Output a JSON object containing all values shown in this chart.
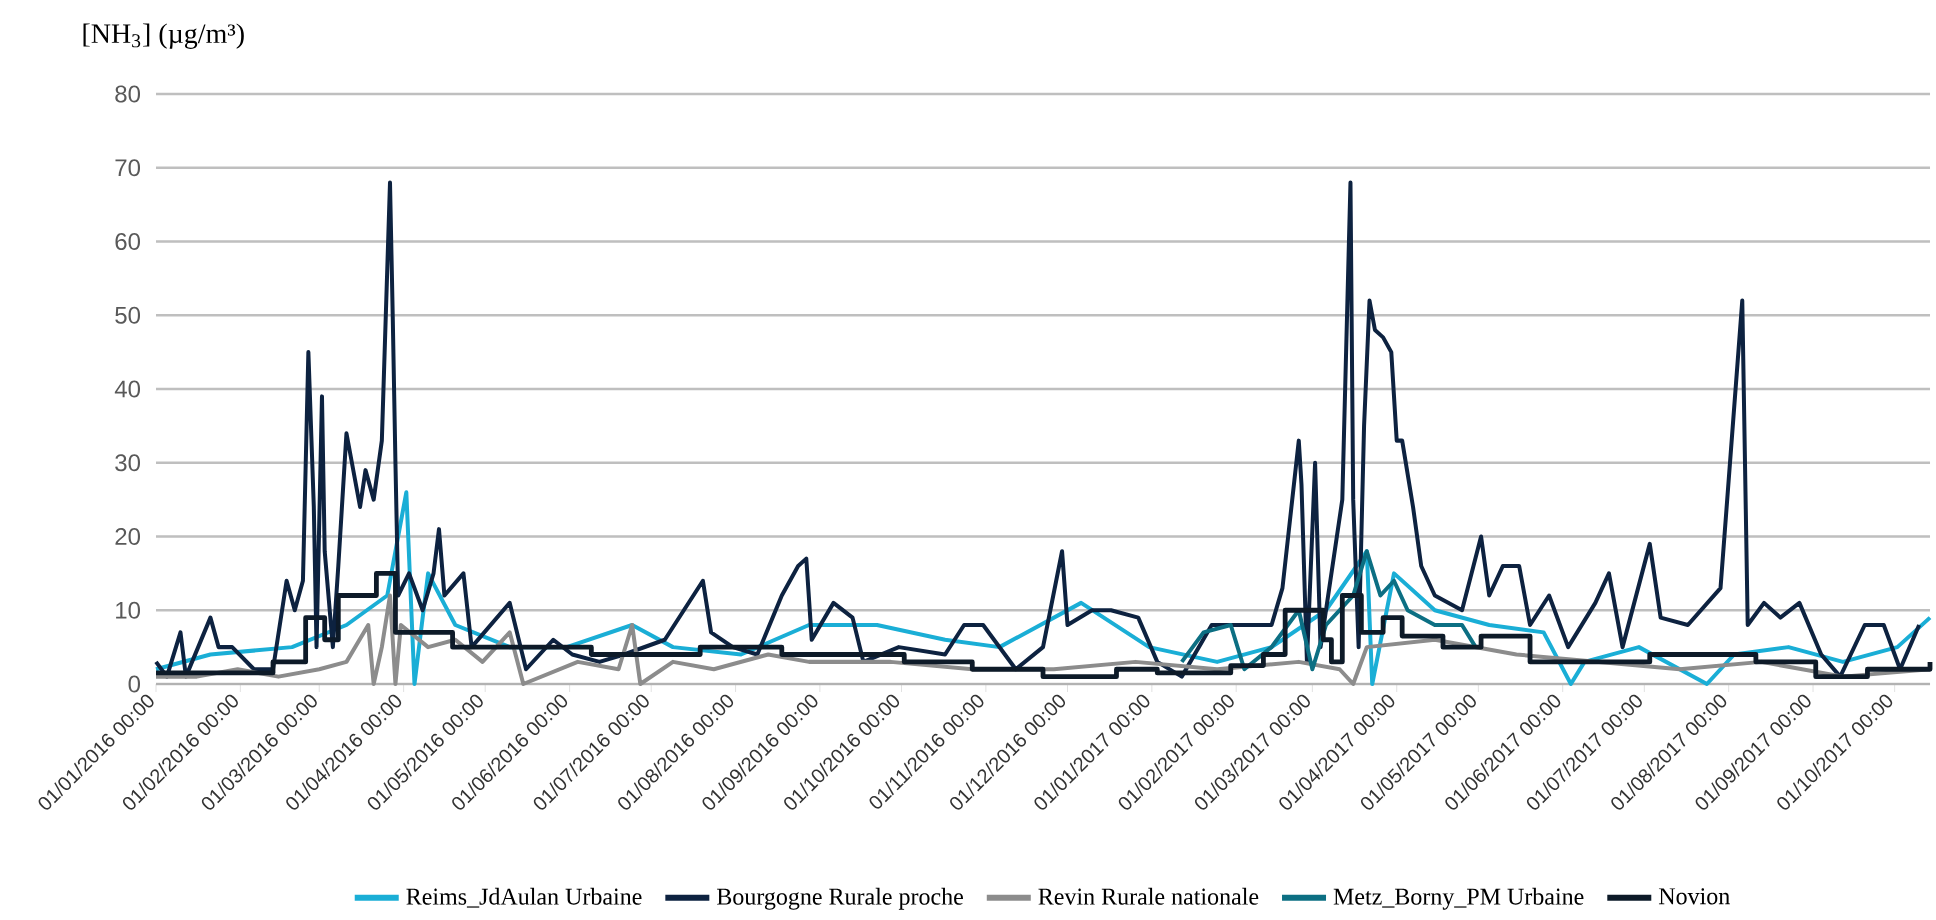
{
  "chart_data": {
    "type": "line",
    "ylabel": "[NH$_{3}$] (µg/m³)",
    "xlim": [
      "2016-01-01",
      "2017-10-14"
    ],
    "ylim": [
      0,
      80
    ],
    "yticks": [
      0,
      10,
      20,
      30,
      40,
      50,
      60,
      70,
      80
    ],
    "xticks": [
      {
        "value": "2016-01-01",
        "label": "01/01/2016 00:00"
      },
      {
        "value": "2016-02-01",
        "label": "01/02/2016 00:00"
      },
      {
        "value": "2016-03-01",
        "label": "01/03/2016 00:00"
      },
      {
        "value": "2016-04-01",
        "label": "01/04/2016 00:00"
      },
      {
        "value": "2016-05-01",
        "label": "01/05/2016 00:00"
      },
      {
        "value": "2016-06-01",
        "label": "01/06/2016 00:00"
      },
      {
        "value": "2016-07-01",
        "label": "01/07/2016 00:00"
      },
      {
        "value": "2016-08-01",
        "label": "01/08/2016 00:00"
      },
      {
        "value": "2016-09-01",
        "label": "01/09/2016 00:00"
      },
      {
        "value": "2016-10-01",
        "label": "01/10/2016 00:00"
      },
      {
        "value": "2016-11-01",
        "label": "01/11/2016 00:00"
      },
      {
        "value": "2016-12-01",
        "label": "01/12/2016 00:00"
      },
      {
        "value": "2017-01-01",
        "label": "01/01/2017 00:00"
      },
      {
        "value": "2017-02-01",
        "label": "01/02/2017 00:00"
      },
      {
        "value": "2017-03-01",
        "label": "01/03/2017 00:00"
      },
      {
        "value": "2017-04-01",
        "label": "01/04/2017 00:00"
      },
      {
        "value": "2017-05-01",
        "label": "01/05/2017 00:00"
      },
      {
        "value": "2017-06-01",
        "label": "01/06/2017 00:00"
      },
      {
        "value": "2017-07-01",
        "label": "01/07/2017 00:00"
      },
      {
        "value": "2017-08-01",
        "label": "01/08/2017 00:00"
      },
      {
        "value": "2017-09-01",
        "label": "01/09/2017 00:00"
      },
      {
        "value": "2017-10-01",
        "label": "01/10/2017 00:00"
      }
    ],
    "grid": "y",
    "legend": "bottom",
    "series": [
      {
        "name": "Reims_JdAulan Urbaine",
        "color": "#1aaed6",
        "x": [
          "2016-01-01",
          "2016-01-21",
          "2016-02-20",
          "2016-03-11",
          "2016-03-26",
          "2016-04-02",
          "2016-04-05",
          "2016-04-10",
          "2016-04-20",
          "2016-05-10",
          "2016-05-31",
          "2016-06-24",
          "2016-07-09",
          "2016-08-03",
          "2016-08-28",
          "2016-09-22",
          "2016-10-17",
          "2016-11-06",
          "2016-12-06",
          "2016-12-31",
          "2017-01-25",
          "2017-02-14",
          "2017-03-06",
          "2017-03-21",
          "2017-03-23",
          "2017-03-31",
          "2017-04-15",
          "2017-05-05",
          "2017-05-25",
          "2017-06-04",
          "2017-06-09",
          "2017-06-29",
          "2017-07-24",
          "2017-08-03",
          "2017-08-23",
          "2017-09-12",
          "2017-10-02",
          "2017-10-14"
        ],
        "values": [
          2,
          4,
          5,
          8,
          12,
          26,
          0,
          15,
          8,
          5,
          5,
          8,
          5,
          4,
          8,
          8,
          6,
          5,
          11,
          5,
          3,
          5,
          10,
          18,
          0,
          15,
          10,
          8,
          7,
          0,
          3,
          5,
          0,
          4,
          5,
          3,
          5,
          9
        ]
      },
      {
        "name": "Bourgogne Rurale proche",
        "color": "#0d2240",
        "x": [
          "2016-01-01",
          "2016-01-05",
          "2016-01-10",
          "2016-01-12",
          "2016-01-21",
          "2016-01-24",
          "2016-01-29",
          "2016-02-06",
          "2016-02-13",
          "2016-02-18",
          "2016-02-21",
          "2016-02-24",
          "2016-02-26",
          "2016-02-28",
          "2016-02-29",
          "2016-03-02",
          "2016-03-03",
          "2016-03-06",
          "2016-03-08",
          "2016-03-11",
          "2016-03-13",
          "2016-03-16",
          "2016-03-18",
          "2016-03-21",
          "2016-03-24",
          "2016-03-27",
          "2016-03-28",
          "2016-03-29",
          "2016-03-30",
          "2016-04-03",
          "2016-04-08",
          "2016-04-12",
          "2016-04-14",
          "2016-04-16",
          "2016-04-23",
          "2016-04-26",
          "2016-05-10",
          "2016-05-16",
          "2016-05-26",
          "2016-06-02",
          "2016-06-12",
          "2016-06-21",
          "2016-07-06",
          "2016-07-20",
          "2016-07-23",
          "2016-07-31",
          "2016-08-09",
          "2016-08-18",
          "2016-08-24",
          "2016-08-27",
          "2016-08-29",
          "2016-09-06",
          "2016-09-13",
          "2016-09-17",
          "2016-09-30",
          "2016-10-17",
          "2016-10-24",
          "2016-10-31",
          "2016-11-12",
          "2016-11-22",
          "2016-11-29",
          "2016-12-01",
          "2016-12-10",
          "2016-12-17",
          "2016-12-27",
          "2017-01-03",
          "2017-01-12",
          "2017-01-23",
          "2017-02-01",
          "2017-02-14",
          "2017-02-18",
          "2017-02-24",
          "2017-02-25",
          "2017-02-27",
          "2017-03-02",
          "2017-03-04",
          "2017-03-10",
          "2017-03-12",
          "2017-03-15",
          "2017-03-16",
          "2017-03-18",
          "2017-03-20",
          "2017-03-22",
          "2017-03-24",
          "2017-03-27",
          "2017-03-30",
          "2017-04-01",
          "2017-04-03",
          "2017-04-07",
          "2017-04-10",
          "2017-04-15",
          "2017-04-25",
          "2017-05-02",
          "2017-05-05",
          "2017-05-10",
          "2017-05-16",
          "2017-05-20",
          "2017-05-27",
          "2017-06-03",
          "2017-06-13",
          "2017-06-18",
          "2017-06-23",
          "2017-07-03",
          "2017-07-07",
          "2017-07-17",
          "2017-07-29",
          "2017-08-06",
          "2017-08-08",
          "2017-08-14",
          "2017-08-20",
          "2017-08-27",
          "2017-09-04",
          "2017-09-11",
          "2017-09-20",
          "2017-09-27",
          "2017-10-03",
          "2017-10-10"
        ],
        "values": [
          3,
          1,
          7,
          1,
          9,
          5,
          5,
          2,
          2,
          14,
          10,
          14,
          45,
          24,
          5,
          39,
          18,
          5,
          16,
          34,
          30,
          24,
          29,
          25,
          33,
          68,
          50,
          30,
          12,
          15,
          10,
          15,
          21,
          12,
          15,
          5,
          11,
          2,
          6,
          4,
          3,
          4,
          6,
          14,
          7,
          5,
          4,
          12,
          16,
          17,
          6,
          11,
          9,
          3,
          5,
          4,
          8,
          8,
          2,
          5,
          18,
          8,
          10,
          10,
          9,
          3,
          1,
          8,
          8,
          8,
          13,
          33,
          27,
          3,
          30,
          5,
          20,
          25,
          68,
          25,
          5,
          35,
          52,
          48,
          47,
          45,
          33,
          33,
          24,
          16,
          12,
          10,
          20,
          12,
          16,
          16,
          8,
          12,
          5,
          11,
          15,
          5,
          19,
          9,
          8,
          13,
          52,
          8,
          11,
          9,
          11,
          4,
          1,
          8,
          8,
          2,
          8
        ]
      },
      {
        "name": "Revin Rurale nationale",
        "color": "#8c8c8c",
        "x": [
          "2016-01-01",
          "2016-01-16",
          "2016-01-31",
          "2016-02-15",
          "2016-03-01",
          "2016-03-11",
          "2016-03-19",
          "2016-03-21",
          "2016-03-24",
          "2016-03-27",
          "2016-03-29",
          "2016-03-31",
          "2016-04-10",
          "2016-04-20",
          "2016-04-30",
          "2016-05-10",
          "2016-05-15",
          "2016-06-04",
          "2016-06-19",
          "2016-06-24",
          "2016-06-27",
          "2016-07-09",
          "2016-07-24",
          "2016-08-13",
          "2016-08-28",
          "2016-09-27",
          "2016-10-27",
          "2016-11-26",
          "2016-12-26",
          "2017-01-25",
          "2017-02-24",
          "2017-03-11",
          "2017-03-16",
          "2017-03-21",
          "2017-04-15",
          "2017-05-15",
          "2017-06-14",
          "2017-07-14",
          "2017-08-13",
          "2017-09-12",
          "2017-10-14"
        ],
        "values": [
          1,
          1,
          2,
          1,
          2,
          3,
          8,
          0,
          5,
          12,
          0,
          8,
          5,
          6,
          3,
          7,
          0,
          3,
          2,
          8,
          0,
          3,
          2,
          4,
          3,
          3,
          2,
          2,
          3,
          2,
          3,
          2,
          0,
          5,
          6,
          4,
          3,
          2,
          3,
          1,
          2
        ]
      },
      {
        "name": "Metz_Borny_PM Urbaine",
        "color": "#0c6f83",
        "x": [
          "2017-01-12",
          "2017-01-20",
          "2017-01-30",
          "2017-02-04",
          "2017-02-14",
          "2017-02-24",
          "2017-03-01",
          "2017-03-06",
          "2017-03-16",
          "2017-03-21",
          "2017-03-26",
          "2017-03-31",
          "2017-04-05",
          "2017-04-15",
          "2017-04-25",
          "2017-04-30"
        ],
        "values": [
          3,
          7,
          8,
          2,
          5,
          10,
          2,
          8,
          12,
          18,
          12,
          14,
          10,
          8,
          8,
          5
        ]
      },
      {
        "name": "Novion",
        "type": "step",
        "color": "#0d1a28",
        "x": [
          "2016-01-01",
          "2016-02-13",
          "2016-02-25",
          "2016-03-03",
          "2016-03-08",
          "2016-03-22",
          "2016-03-29",
          "2016-04-19",
          "2016-06-09",
          "2016-07-19",
          "2016-08-18",
          "2016-10-02",
          "2016-10-27",
          "2016-11-22",
          "2016-12-19",
          "2017-01-03",
          "2017-01-30",
          "2017-02-11",
          "2017-02-19",
          "2017-03-05",
          "2017-03-08",
          "2017-03-12",
          "2017-03-19",
          "2017-03-27",
          "2017-04-03",
          "2017-04-18",
          "2017-05-02",
          "2017-05-20",
          "2017-07-03",
          "2017-08-11",
          "2017-09-02",
          "2017-09-21",
          "2017-10-14"
        ],
        "values": [
          1.5,
          3,
          9,
          6,
          12,
          15,
          7,
          5,
          4,
          5,
          4,
          3,
          2,
          1,
          2,
          1.5,
          2.5,
          4,
          10,
          6,
          3,
          12,
          7,
          9,
          6.5,
          5,
          6.5,
          3,
          4,
          3,
          1,
          2,
          3
        ]
      }
    ]
  }
}
